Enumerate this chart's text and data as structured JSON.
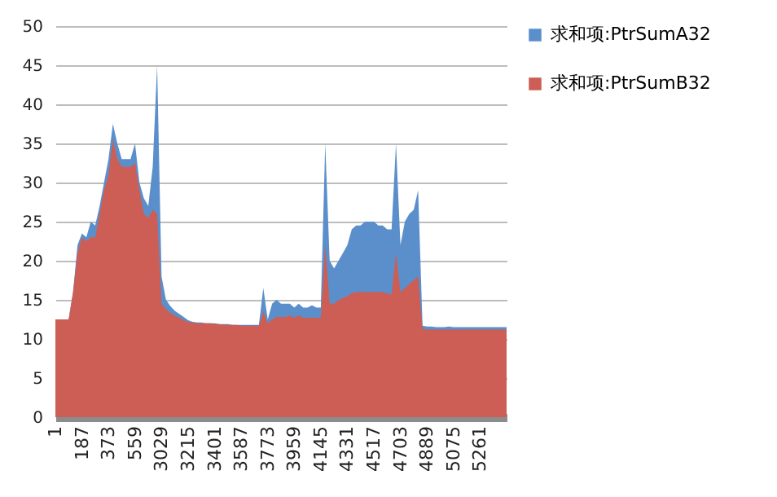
{
  "chart_data": {
    "type": "area",
    "categories": [
      "1",
      null,
      null,
      null,
      null,
      null,
      "187",
      null,
      null,
      null,
      null,
      null,
      "373",
      null,
      null,
      null,
      null,
      null,
      "559",
      null,
      null,
      null,
      null,
      null,
      "3029",
      null,
      null,
      null,
      null,
      null,
      "3215",
      null,
      null,
      null,
      null,
      null,
      "3401",
      null,
      null,
      null,
      null,
      null,
      "3587",
      null,
      null,
      null,
      null,
      null,
      "3773",
      null,
      null,
      null,
      null,
      null,
      "3959",
      null,
      null,
      null,
      null,
      null,
      "4145",
      null,
      null,
      null,
      null,
      null,
      "4331",
      null,
      null,
      null,
      null,
      null,
      "4517",
      null,
      null,
      null,
      null,
      null,
      "4703",
      null,
      null,
      null,
      null,
      null,
      "4889",
      null,
      null,
      null,
      null,
      null,
      "5075",
      null,
      null,
      null,
      null,
      null,
      "5261",
      null,
      null,
      null,
      null,
      null,
      null
    ],
    "series": [
      {
        "name": "求和项:PtrSumA32",
        "color": "#5b8fcc",
        "values": [
          12.5,
          12.5,
          12.5,
          12.5,
          16,
          22,
          23.5,
          23,
          25,
          24.5,
          27,
          30,
          33,
          37.5,
          35,
          33,
          33,
          33,
          35,
          30,
          28,
          27,
          32,
          45,
          18,
          15,
          14.2,
          13.6,
          13.2,
          12.8,
          12.4,
          12.2,
          12.1,
          12.1,
          12,
          12,
          12,
          11.9,
          11.9,
          11.9,
          11.8,
          11.8,
          11.8,
          11.8,
          11.8,
          11.8,
          11.8,
          16.5,
          12.5,
          14.5,
          15,
          14.5,
          14.5,
          14.5,
          14,
          14.5,
          14,
          14,
          14.3,
          14,
          14,
          35,
          20,
          19,
          20,
          21,
          22,
          24,
          24.5,
          24.5,
          25,
          25,
          25,
          24.5,
          24.5,
          24,
          24,
          35,
          22,
          25,
          26,
          26.5,
          29,
          11.7,
          11.6,
          11.6,
          11.5,
          11.5,
          11.5,
          11.6,
          11.5,
          11.5,
          11.5,
          11.5,
          11.5,
          11.5,
          11.5,
          11.5,
          11.5,
          11.5,
          11.5,
          11.5,
          11.5
        ]
      },
      {
        "name": "求和项:PtrSumB32",
        "color": "#cd5e55",
        "values": [
          12.5,
          12.5,
          12.5,
          12.5,
          16,
          21,
          23,
          22.5,
          23,
          23,
          26,
          29,
          31,
          35.5,
          33,
          32,
          32,
          32,
          32.5,
          29,
          26,
          25.5,
          26.5,
          26,
          14.5,
          13.8,
          13.3,
          13,
          12.7,
          12.4,
          12.2,
          12.1,
          12,
          12,
          12,
          12,
          11.9,
          11.9,
          11.8,
          11.8,
          11.8,
          11.8,
          11.7,
          11.7,
          11.7,
          11.7,
          11.7,
          13.5,
          12,
          12.5,
          12.8,
          12.8,
          12.8,
          13,
          12.7,
          13,
          12.7,
          12.7,
          12.7,
          12.7,
          12.7,
          22,
          14.5,
          14.5,
          15,
          15.2,
          15.5,
          15.8,
          16,
          16,
          16,
          16,
          16,
          16,
          16,
          15.8,
          15.7,
          21,
          16,
          16.5,
          17,
          17.5,
          18,
          11.3,
          11.2,
          11.2,
          11.2,
          11.2,
          11.2,
          11.2,
          11.2,
          11.2,
          11.2,
          11.2,
          11.2,
          11.2,
          11.2,
          11.2,
          11.2,
          11.2,
          11.2,
          11.2,
          11.2
        ]
      }
    ],
    "ylim": [
      0,
      50
    ],
    "yticks": [
      0,
      5,
      10,
      15,
      20,
      25,
      30,
      35,
      40,
      45,
      50
    ],
    "grid": "y",
    "legend": "right"
  }
}
